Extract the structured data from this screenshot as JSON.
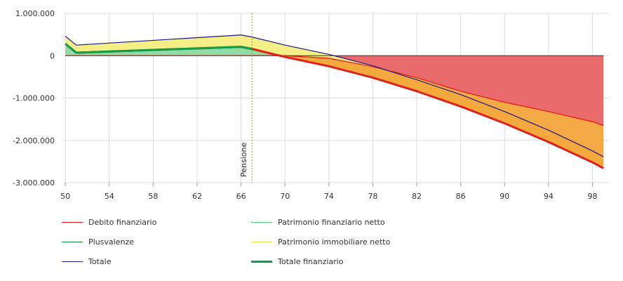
{
  "chart_data": {
    "type": "area",
    "x": [
      50,
      51,
      66,
      67,
      70,
      74,
      78,
      82,
      86,
      90,
      94,
      98,
      99
    ],
    "x_ticks": [
      50,
      54,
      58,
      62,
      66,
      70,
      74,
      78,
      82,
      86,
      90,
      94,
      98
    ],
    "xlim": [
      49.8,
      99.5
    ],
    "ylim": [
      -3000000,
      1000000
    ],
    "y_ticks": [
      {
        "value": 1000000,
        "label": "1.000.000"
      },
      {
        "value": 0,
        "label": "0"
      },
      {
        "value": -1000000,
        "label": "-1.000.000"
      },
      {
        "value": -2000000,
        "label": "-2.000.000"
      },
      {
        "value": -3000000,
        "label": "-3.000.000"
      }
    ],
    "grid": true,
    "legend_position": "bottom-left",
    "series": [
      {
        "name": "Debito finanziario",
        "color": "#e8141b",
        "values": [
          0,
          0,
          0,
          0,
          0,
          -60000,
          -260000,
          -520000,
          -840000,
          -1100000,
          -1320000,
          -1560000,
          -1650000
        ]
      },
      {
        "name": "Patrimonio finanziario netto",
        "color": "#4fcf7a",
        "values": [
          280000,
          70000,
          210000,
          160000,
          -30000,
          -250000,
          -520000,
          -840000,
          -1200000,
          -1600000,
          -2040000,
          -2520000,
          -2660000
        ]
      },
      {
        "name": "Plusvalenze",
        "color": "#0d8a3e",
        "values": [
          280000,
          70000,
          210000,
          160000,
          -30000,
          -250000,
          -520000,
          -840000,
          -1200000,
          -1600000,
          -2040000,
          -2520000,
          -2660000
        ]
      },
      {
        "name": "Patrimonio immobiliare netto",
        "color": "#f0e040",
        "values": [
          180000,
          180000,
          280000,
          280000,
          280000,
          280000,
          280000,
          270000,
          280000,
          280000,
          280000,
          270000,
          270000
        ]
      },
      {
        "name": "Totale",
        "color": "#1a1a8c",
        "values": [
          460000,
          250000,
          490000,
          440000,
          250000,
          30000,
          -240000,
          -570000,
          -920000,
          -1320000,
          -1760000,
          -2250000,
          -2390000
        ]
      },
      {
        "name": "Totale finanziario",
        "color": "#0e9e48",
        "values": [
          280000,
          70000,
          210000,
          160000,
          -30000,
          -250000,
          -520000,
          -840000,
          -1200000,
          -1600000,
          -2040000,
          -2520000,
          -2660000
        ]
      }
    ],
    "annotations": [
      {
        "type": "vertical-line",
        "x": 67,
        "label": "Pensione",
        "color": "#c08a00"
      }
    ],
    "colors": {
      "top_band": "#ececec",
      "grid": "#dddddd",
      "debt_fill": "#e96b6b",
      "immobiliare_fill": "#f3ee85",
      "negative_gap_fill": "#f2a43a",
      "financial_fill": "#8fdca6"
    }
  }
}
